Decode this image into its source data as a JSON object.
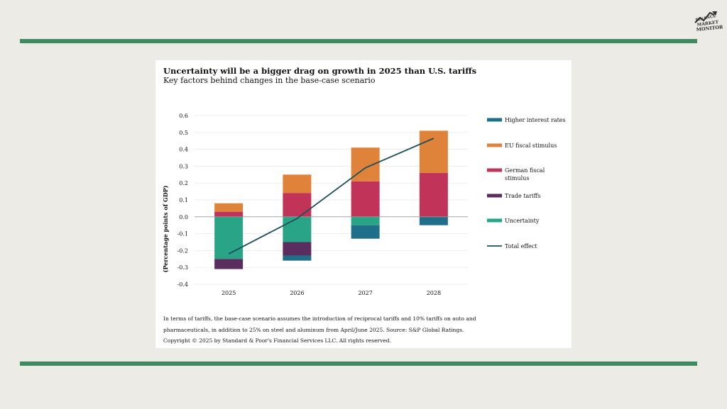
{
  "logo": {
    "lines": [
      "FINANCE",
      "MARKET",
      "MONITOR"
    ],
    "icon": "rising-chart-icon"
  },
  "colors": {
    "background": "#ecebe6",
    "rule": "#3f8a5e",
    "higher_interest_rates": "#1f6f8b",
    "eu_fiscal_stimulus": "#e0833a",
    "german_fiscal_stimulus": "#c2335a",
    "trade_tariffs": "#5a2d5e",
    "uncertainty": "#2aa487",
    "total_effect": "#1f4f5c"
  },
  "chart_data": {
    "type": "bar",
    "stacked": true,
    "title": "Uncertainty will be a bigger drag on growth in 2025 than U.S. tariffs",
    "subtitle": "Key factors behind changes in the base-case scenario",
    "ylabel": "(Percentage points of GDP)",
    "xlabel": "",
    "ylim": [
      -0.4,
      0.6
    ],
    "yticks": [
      0.6,
      0.5,
      0.4,
      0.3,
      0.2,
      0.1,
      0.0,
      -0.1,
      -0.2,
      -0.3,
      -0.4
    ],
    "ytick_labels": [
      "0.6",
      "0.5",
      "0.4",
      "0.3",
      "0.2",
      "0.1",
      "0.0",
      "-0.1",
      "-0.2",
      "-0.3",
      "-0.4"
    ],
    "categories": [
      "2025",
      "2026",
      "2027",
      "2028"
    ],
    "grid": true,
    "legend_position": "right",
    "series": [
      {
        "name": "Higher interest rates",
        "color_key": "higher_interest_rates",
        "values": [
          0.0,
          -0.03,
          -0.08,
          -0.05
        ]
      },
      {
        "name": "EU fiscal stimulus",
        "color_key": "eu_fiscal_stimulus",
        "values": [
          0.05,
          0.11,
          0.2,
          0.25
        ]
      },
      {
        "name": "German fiscal stimulus",
        "color_key": "german_fiscal_stimulus",
        "values": [
          0.03,
          0.14,
          0.21,
          0.26
        ]
      },
      {
        "name": "Trade tariffs",
        "color_key": "trade_tariffs",
        "values": [
          -0.06,
          -0.08,
          0.0,
          0.0
        ]
      },
      {
        "name": "Uncertainty",
        "color_key": "uncertainty",
        "values": [
          -0.25,
          -0.15,
          -0.05,
          0.0
        ]
      }
    ],
    "line": {
      "name": "Total effect",
      "color_key": "total_effect",
      "values": [
        -0.22,
        -0.01,
        0.29,
        0.465
      ]
    },
    "legend_items": [
      {
        "label_lines": [
          "Higher interest rates"
        ],
        "color_key": "higher_interest_rates",
        "kind": "bar"
      },
      {
        "label_lines": [
          "EU fiscal stimulus"
        ],
        "color_key": "eu_fiscal_stimulus",
        "kind": "bar"
      },
      {
        "label_lines": [
          "German fiscal",
          "stimulus"
        ],
        "color_key": "german_fiscal_stimulus",
        "kind": "bar"
      },
      {
        "label_lines": [
          "Trade tariffs"
        ],
        "color_key": "trade_tariffs",
        "kind": "bar"
      },
      {
        "label_lines": [
          "Uncertainty"
        ],
        "color_key": "uncertainty",
        "kind": "bar"
      },
      {
        "label_lines": [
          "Total effect"
        ],
        "color_key": "total_effect",
        "kind": "line"
      }
    ]
  },
  "footnote": {
    "lines": [
      "In terms of tariffs, the base-case scenario assumes the introduction of reciprocal tariffs and 10% tariffs on auto and",
      "pharmaceuticals, in addition to 25% on steel and aluminum from April/June 2025. Source: S&P Global Ratings.",
      "Copyright © 2025 by Standard & Poor's Financial Services LLC. All rights reserved."
    ]
  }
}
